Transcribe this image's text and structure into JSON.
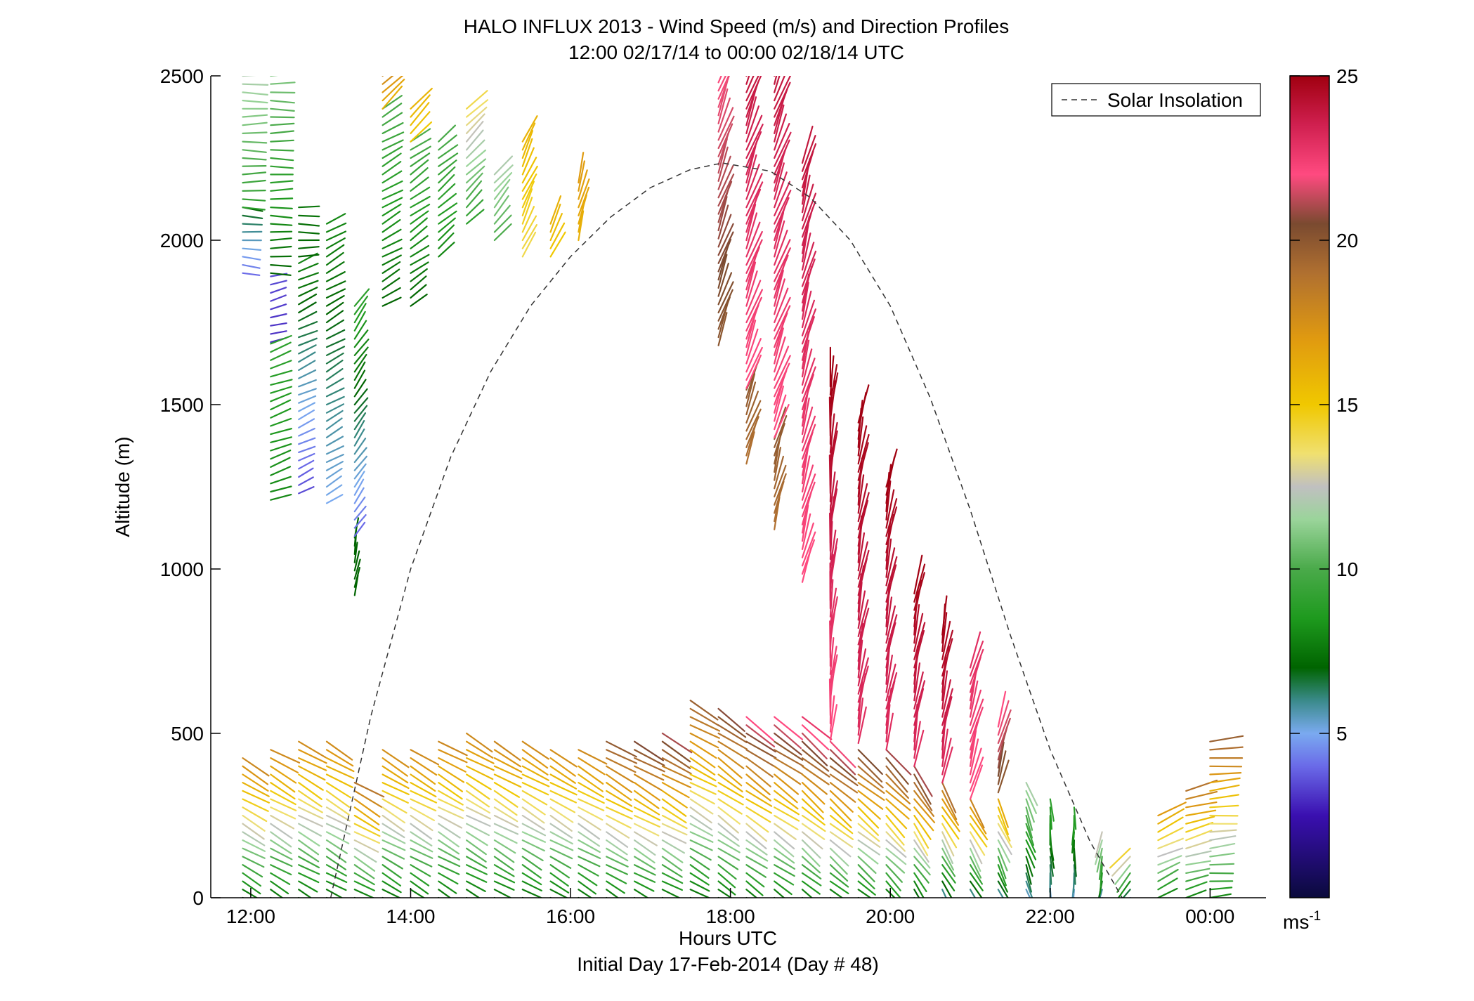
{
  "chart_data": {
    "type": "wind_barb_profile",
    "title": "HALO INFLUX 2013 - Wind Speed (m/s) and Direction Profiles",
    "subtitle": "12:00 02/17/14 to 00:00 02/18/14  UTC",
    "xlabel": "Hours UTC",
    "xlabel2": "Initial Day 17-Feb-2014 (Day # 48)",
    "ylabel": "Altitude (m)",
    "xlim": [
      11.5,
      24.7
    ],
    "ylim": [
      0,
      2500
    ],
    "x_ticks": [
      12,
      14,
      16,
      18,
      20,
      22,
      24
    ],
    "x_tick_labels": [
      "12:00",
      "14:00",
      "16:00",
      "18:00",
      "20:00",
      "22:00",
      "00:00"
    ],
    "y_ticks": [
      0,
      500,
      1000,
      1500,
      2000,
      2500
    ],
    "y_tick_labels": [
      "0",
      "500",
      "1000",
      "1500",
      "2000",
      "2500"
    ],
    "colorbar": {
      "range": [
        0,
        25
      ],
      "ticks": [
        5,
        10,
        15,
        20,
        25
      ],
      "tick_labels": [
        "5",
        "10",
        "15",
        "20",
        "25"
      ],
      "unit_label": "ms",
      "unit_exponent": "-1",
      "stops": [
        {
          "v": 0,
          "c": "#0a0a3c"
        },
        {
          "v": 2.5,
          "c": "#3a0fb0"
        },
        {
          "v": 4,
          "c": "#6a6ae8"
        },
        {
          "v": 5,
          "c": "#7aaaf0"
        },
        {
          "v": 6,
          "c": "#3a8a8a"
        },
        {
          "v": 7,
          "c": "#006400"
        },
        {
          "v": 8.5,
          "c": "#1e9a1e"
        },
        {
          "v": 10,
          "c": "#4aaa4a"
        },
        {
          "v": 11.5,
          "c": "#9ad49a"
        },
        {
          "v": 12.5,
          "c": "#c0c0c0"
        },
        {
          "v": 13.5,
          "c": "#f0e070"
        },
        {
          "v": 15,
          "c": "#f0c800"
        },
        {
          "v": 17,
          "c": "#e09a10"
        },
        {
          "v": 19,
          "c": "#b07030"
        },
        {
          "v": 20.5,
          "c": "#7a4a30"
        },
        {
          "v": 22,
          "c": "#ff4a80"
        },
        {
          "v": 23.5,
          "c": "#d02050"
        },
        {
          "v": 25,
          "c": "#a00010"
        }
      ]
    },
    "legend": {
      "label": "Solar Insolation",
      "position": "top-right",
      "style": "dashed",
      "color": "#333333"
    },
    "solar_insolation": {
      "x": [
        13.0,
        13.5,
        14.0,
        14.5,
        15.0,
        15.5,
        16.0,
        16.5,
        17.0,
        17.5,
        17.9,
        18.5,
        19.0,
        19.5,
        20.0,
        20.5,
        21.0,
        21.5,
        22.0,
        22.5,
        22.9
      ],
      "y": [
        0,
        550,
        1000,
        1340,
        1600,
        1800,
        1950,
        2070,
        2160,
        2215,
        2235,
        2210,
        2130,
        2000,
        1800,
        1520,
        1180,
        800,
        450,
        170,
        0
      ]
    },
    "wind_profiles": [
      {
        "time": 11.9,
        "segments": [
          {
            "z0": 0,
            "z1": 430,
            "dir": 300,
            "spd0": 7,
            "spd1": 18
          },
          {
            "z0": 1900,
            "z1": 2100,
            "dir": 275,
            "spd0": 4,
            "spd1": 7
          },
          {
            "z0": 2100,
            "z1": 2500,
            "dir": 270,
            "spd0": 9,
            "spd1": 12
          }
        ]
      },
      {
        "time": 12.25,
        "segments": [
          {
            "z0": 0,
            "z1": 460,
            "dir": 300,
            "spd0": 7,
            "spd1": 18
          },
          {
            "z0": 1690,
            "z1": 1900,
            "dir": 255,
            "spd0": 3,
            "spd1": 3.5
          },
          {
            "z0": 1210,
            "z1": 1690,
            "dir": 250,
            "spd0": 8,
            "spd1": 9
          },
          {
            "z0": 1900,
            "z1": 2500,
            "dir": 270,
            "spd0": 7,
            "spd1": 11
          }
        ]
      },
      {
        "time": 12.6,
        "segments": [
          {
            "z0": 0,
            "z1": 490,
            "dir": 300,
            "spd0": 7,
            "spd1": 18
          },
          {
            "z0": 1230,
            "z1": 1950,
            "dir": 245,
            "spd0": 3.5,
            "spd1": 8
          },
          {
            "z0": 1950,
            "z1": 2100,
            "dir": 270,
            "spd0": 7,
            "spd1": 7.5
          }
        ]
      },
      {
        "time": 12.95,
        "segments": [
          {
            "z0": 0,
            "z1": 490,
            "dir": 300,
            "spd0": 7,
            "spd1": 18
          },
          {
            "z0": 1200,
            "z1": 2050,
            "dir": 240,
            "spd0": 5,
            "spd1": 8
          }
        ]
      },
      {
        "time": 13.3,
        "segments": [
          {
            "z0": 920,
            "z1": 1100,
            "dir": 190,
            "spd0": 7,
            "spd1": 7
          },
          {
            "z0": 1100,
            "z1": 1800,
            "dir": 215,
            "spd0": 4,
            "spd1": 9
          },
          {
            "z0": 0,
            "z1": 360,
            "dir": 300,
            "spd0": 7,
            "spd1": 19
          }
        ]
      },
      {
        "time": 13.65,
        "segments": [
          {
            "z0": 0,
            "z1": 470,
            "dir": 300,
            "spd0": 7,
            "spd1": 18
          },
          {
            "z0": 1800,
            "z1": 2400,
            "dir": 240,
            "spd0": 7,
            "spd1": 10
          },
          {
            "z0": 2400,
            "z1": 2500,
            "dir": 225,
            "spd0": 16,
            "spd1": 18
          }
        ]
      },
      {
        "time": 14.0,
        "segments": [
          {
            "z0": 0,
            "z1": 460,
            "dir": 300,
            "spd0": 7,
            "spd1": 18
          },
          {
            "z0": 1800,
            "z1": 2300,
            "dir": 235,
            "spd0": 7,
            "spd1": 10
          },
          {
            "z0": 2300,
            "z1": 2420,
            "dir": 225,
            "spd0": 15,
            "spd1": 16
          }
        ]
      },
      {
        "time": 14.35,
        "segments": [
          {
            "z0": 0,
            "z1": 480,
            "dir": 300,
            "spd0": 7,
            "spd1": 18
          },
          {
            "z0": 1950,
            "z1": 2300,
            "dir": 230,
            "spd0": 8,
            "spd1": 10
          }
        ]
      },
      {
        "time": 14.7,
        "segments": [
          {
            "z0": 0,
            "z1": 510,
            "dir": 300,
            "spd0": 7,
            "spd1": 18
          },
          {
            "z0": 2050,
            "z1": 2400,
            "dir": 225,
            "spd0": 9,
            "spd1": 14
          }
        ]
      },
      {
        "time": 15.05,
        "segments": [
          {
            "z0": 0,
            "z1": 480,
            "dir": 300,
            "spd0": 7,
            "spd1": 18
          },
          {
            "z0": 2000,
            "z1": 2200,
            "dir": 220,
            "spd0": 10,
            "spd1": 12
          }
        ]
      },
      {
        "time": 15.4,
        "segments": [
          {
            "z0": 0,
            "z1": 490,
            "dir": 300,
            "spd0": 7,
            "spd1": 18
          },
          {
            "z0": 1950,
            "z1": 2320,
            "dir": 205,
            "spd0": 14,
            "spd1": 16
          }
        ]
      },
      {
        "time": 15.75,
        "segments": [
          {
            "z0": 0,
            "z1": 470,
            "dir": 300,
            "spd0": 7,
            "spd1": 18
          },
          {
            "z0": 1950,
            "z1": 2050,
            "dir": 205,
            "spd0": 15,
            "spd1": 16
          }
        ]
      },
      {
        "time": 16.1,
        "segments": [
          {
            "z0": 0,
            "z1": 460,
            "dir": 300,
            "spd0": 7,
            "spd1": 18
          },
          {
            "z0": 2000,
            "z1": 2180,
            "dir": 195,
            "spd0": 16,
            "spd1": 17
          }
        ]
      },
      {
        "time": 16.45,
        "segments": [
          {
            "z0": 0,
            "z1": 480,
            "dir": 300,
            "spd0": 7,
            "spd1": 20
          }
        ]
      },
      {
        "time": 16.8,
        "segments": [
          {
            "z0": 0,
            "z1": 490,
            "dir": 300,
            "spd0": 7,
            "spd1": 21
          }
        ]
      },
      {
        "time": 17.15,
        "segments": [
          {
            "z0": 0,
            "z1": 500,
            "dir": 300,
            "spd0": 7,
            "spd1": 21
          }
        ]
      },
      {
        "time": 17.5,
        "segments": [
          {
            "z0": 0,
            "z1": 620,
            "dir": 300,
            "spd0": 7,
            "spd1": 20
          }
        ]
      },
      {
        "time": 17.85,
        "segments": [
          {
            "z0": 0,
            "z1": 590,
            "dir": 305,
            "spd0": 7,
            "spd1": 21
          },
          {
            "z0": 1680,
            "z1": 2500,
            "dir": 200,
            "spd0": 20,
            "spd1": 22
          }
        ]
      },
      {
        "time": 18.2,
        "segments": [
          {
            "z0": 0,
            "z1": 550,
            "dir": 305,
            "spd0": 7,
            "spd1": 22
          },
          {
            "z0": 1320,
            "z1": 1550,
            "dir": 200,
            "spd0": 19,
            "spd1": 20
          },
          {
            "z0": 1550,
            "z1": 2500,
            "dir": 200,
            "spd0": 22,
            "spd1": 24
          }
        ]
      },
      {
        "time": 18.55,
        "segments": [
          {
            "z0": 0,
            "z1": 550,
            "dir": 305,
            "spd0": 7,
            "spd1": 22
          },
          {
            "z0": 1120,
            "z1": 1400,
            "dir": 195,
            "spd0": 19,
            "spd1": 20
          },
          {
            "z0": 1400,
            "z1": 2500,
            "dir": 200,
            "spd0": 22,
            "spd1": 24
          }
        ]
      },
      {
        "time": 18.9,
        "segments": [
          {
            "z0": 0,
            "z1": 560,
            "dir": 310,
            "spd0": 7,
            "spd1": 23
          },
          {
            "z0": 960,
            "z1": 2250,
            "dir": 195,
            "spd0": 22,
            "spd1": 24
          }
        ]
      },
      {
        "time": 19.25,
        "segments": [
          {
            "z0": 0,
            "z1": 480,
            "dir": 310,
            "spd0": 7,
            "spd1": 22
          },
          {
            "z0": 480,
            "z1": 1560,
            "dir": 185,
            "spd0": 22,
            "spd1": 25
          }
        ]
      },
      {
        "time": 19.6,
        "segments": [
          {
            "z0": 0,
            "z1": 470,
            "dir": 310,
            "spd0": 7,
            "spd1": 21
          },
          {
            "z0": 470,
            "z1": 1450,
            "dir": 190,
            "spd0": 23,
            "spd1": 25
          }
        ]
      },
      {
        "time": 19.95,
        "segments": [
          {
            "z0": 0,
            "z1": 450,
            "dir": 315,
            "spd0": 7,
            "spd1": 21
          },
          {
            "z0": 450,
            "z1": 1250,
            "dir": 190,
            "spd0": 23,
            "spd1": 25
          }
        ]
      },
      {
        "time": 20.3,
        "segments": [
          {
            "z0": 0,
            "z1": 400,
            "dir": 325,
            "spd0": 6,
            "spd1": 21
          },
          {
            "z0": 400,
            "z1": 940,
            "dir": 190,
            "spd0": 23,
            "spd1": 25
          }
        ]
      },
      {
        "time": 20.65,
        "segments": [
          {
            "z0": 0,
            "z1": 350,
            "dir": 330,
            "spd0": 5,
            "spd1": 19
          },
          {
            "z0": 350,
            "z1": 820,
            "dir": 190,
            "spd0": 23,
            "spd1": 25
          }
        ]
      },
      {
        "time": 21.0,
        "segments": [
          {
            "z0": 0,
            "z1": 300,
            "dir": 330,
            "spd0": 5,
            "spd1": 18
          },
          {
            "z0": 300,
            "z1": 720,
            "dir": 195,
            "spd0": 22,
            "spd1": 23
          }
        ]
      },
      {
        "time": 21.35,
        "segments": [
          {
            "z0": 0,
            "z1": 320,
            "dir": 335,
            "spd0": 5,
            "spd1": 17
          },
          {
            "z0": 320,
            "z1": 520,
            "dir": 195,
            "spd0": 20,
            "spd1": 22
          }
        ]
      },
      {
        "time": 21.7,
        "segments": [
          {
            "z0": 0,
            "z1": 360,
            "dir": 340,
            "spd0": 5,
            "spd1": 12
          }
        ]
      },
      {
        "time": 22.0,
        "segments": [
          {
            "z0": 0,
            "z1": 300,
            "dir": 355,
            "spd0": 5,
            "spd1": 9
          }
        ]
      },
      {
        "time": 22.3,
        "segments": [
          {
            "z0": 0,
            "z1": 290,
            "dir": 0,
            "spd0": 5,
            "spd1": 9
          }
        ]
      },
      {
        "time": 22.65,
        "segments": [
          {
            "z0": 0,
            "z1": 210,
            "dir": 10,
            "spd0": 5,
            "spd1": 13
          }
        ]
      },
      {
        "time": 23.0,
        "segments": [
          {
            "z0": 0,
            "z1": 160,
            "dir": 40,
            "spd0": 5,
            "spd1": 15
          }
        ]
      },
      {
        "time": 23.35,
        "segments": [
          {
            "z0": 0,
            "z1": 250,
            "dir": 245,
            "spd0": 8,
            "spd1": 17
          }
        ]
      },
      {
        "time": 23.7,
        "segments": [
          {
            "z0": 0,
            "z1": 330,
            "dir": 255,
            "spd0": 8,
            "spd1": 19
          }
        ]
      },
      {
        "time": 24.0,
        "segments": [
          {
            "z0": 0,
            "z1": 490,
            "dir": 265,
            "spd0": 8,
            "spd1": 20
          }
        ]
      }
    ]
  }
}
